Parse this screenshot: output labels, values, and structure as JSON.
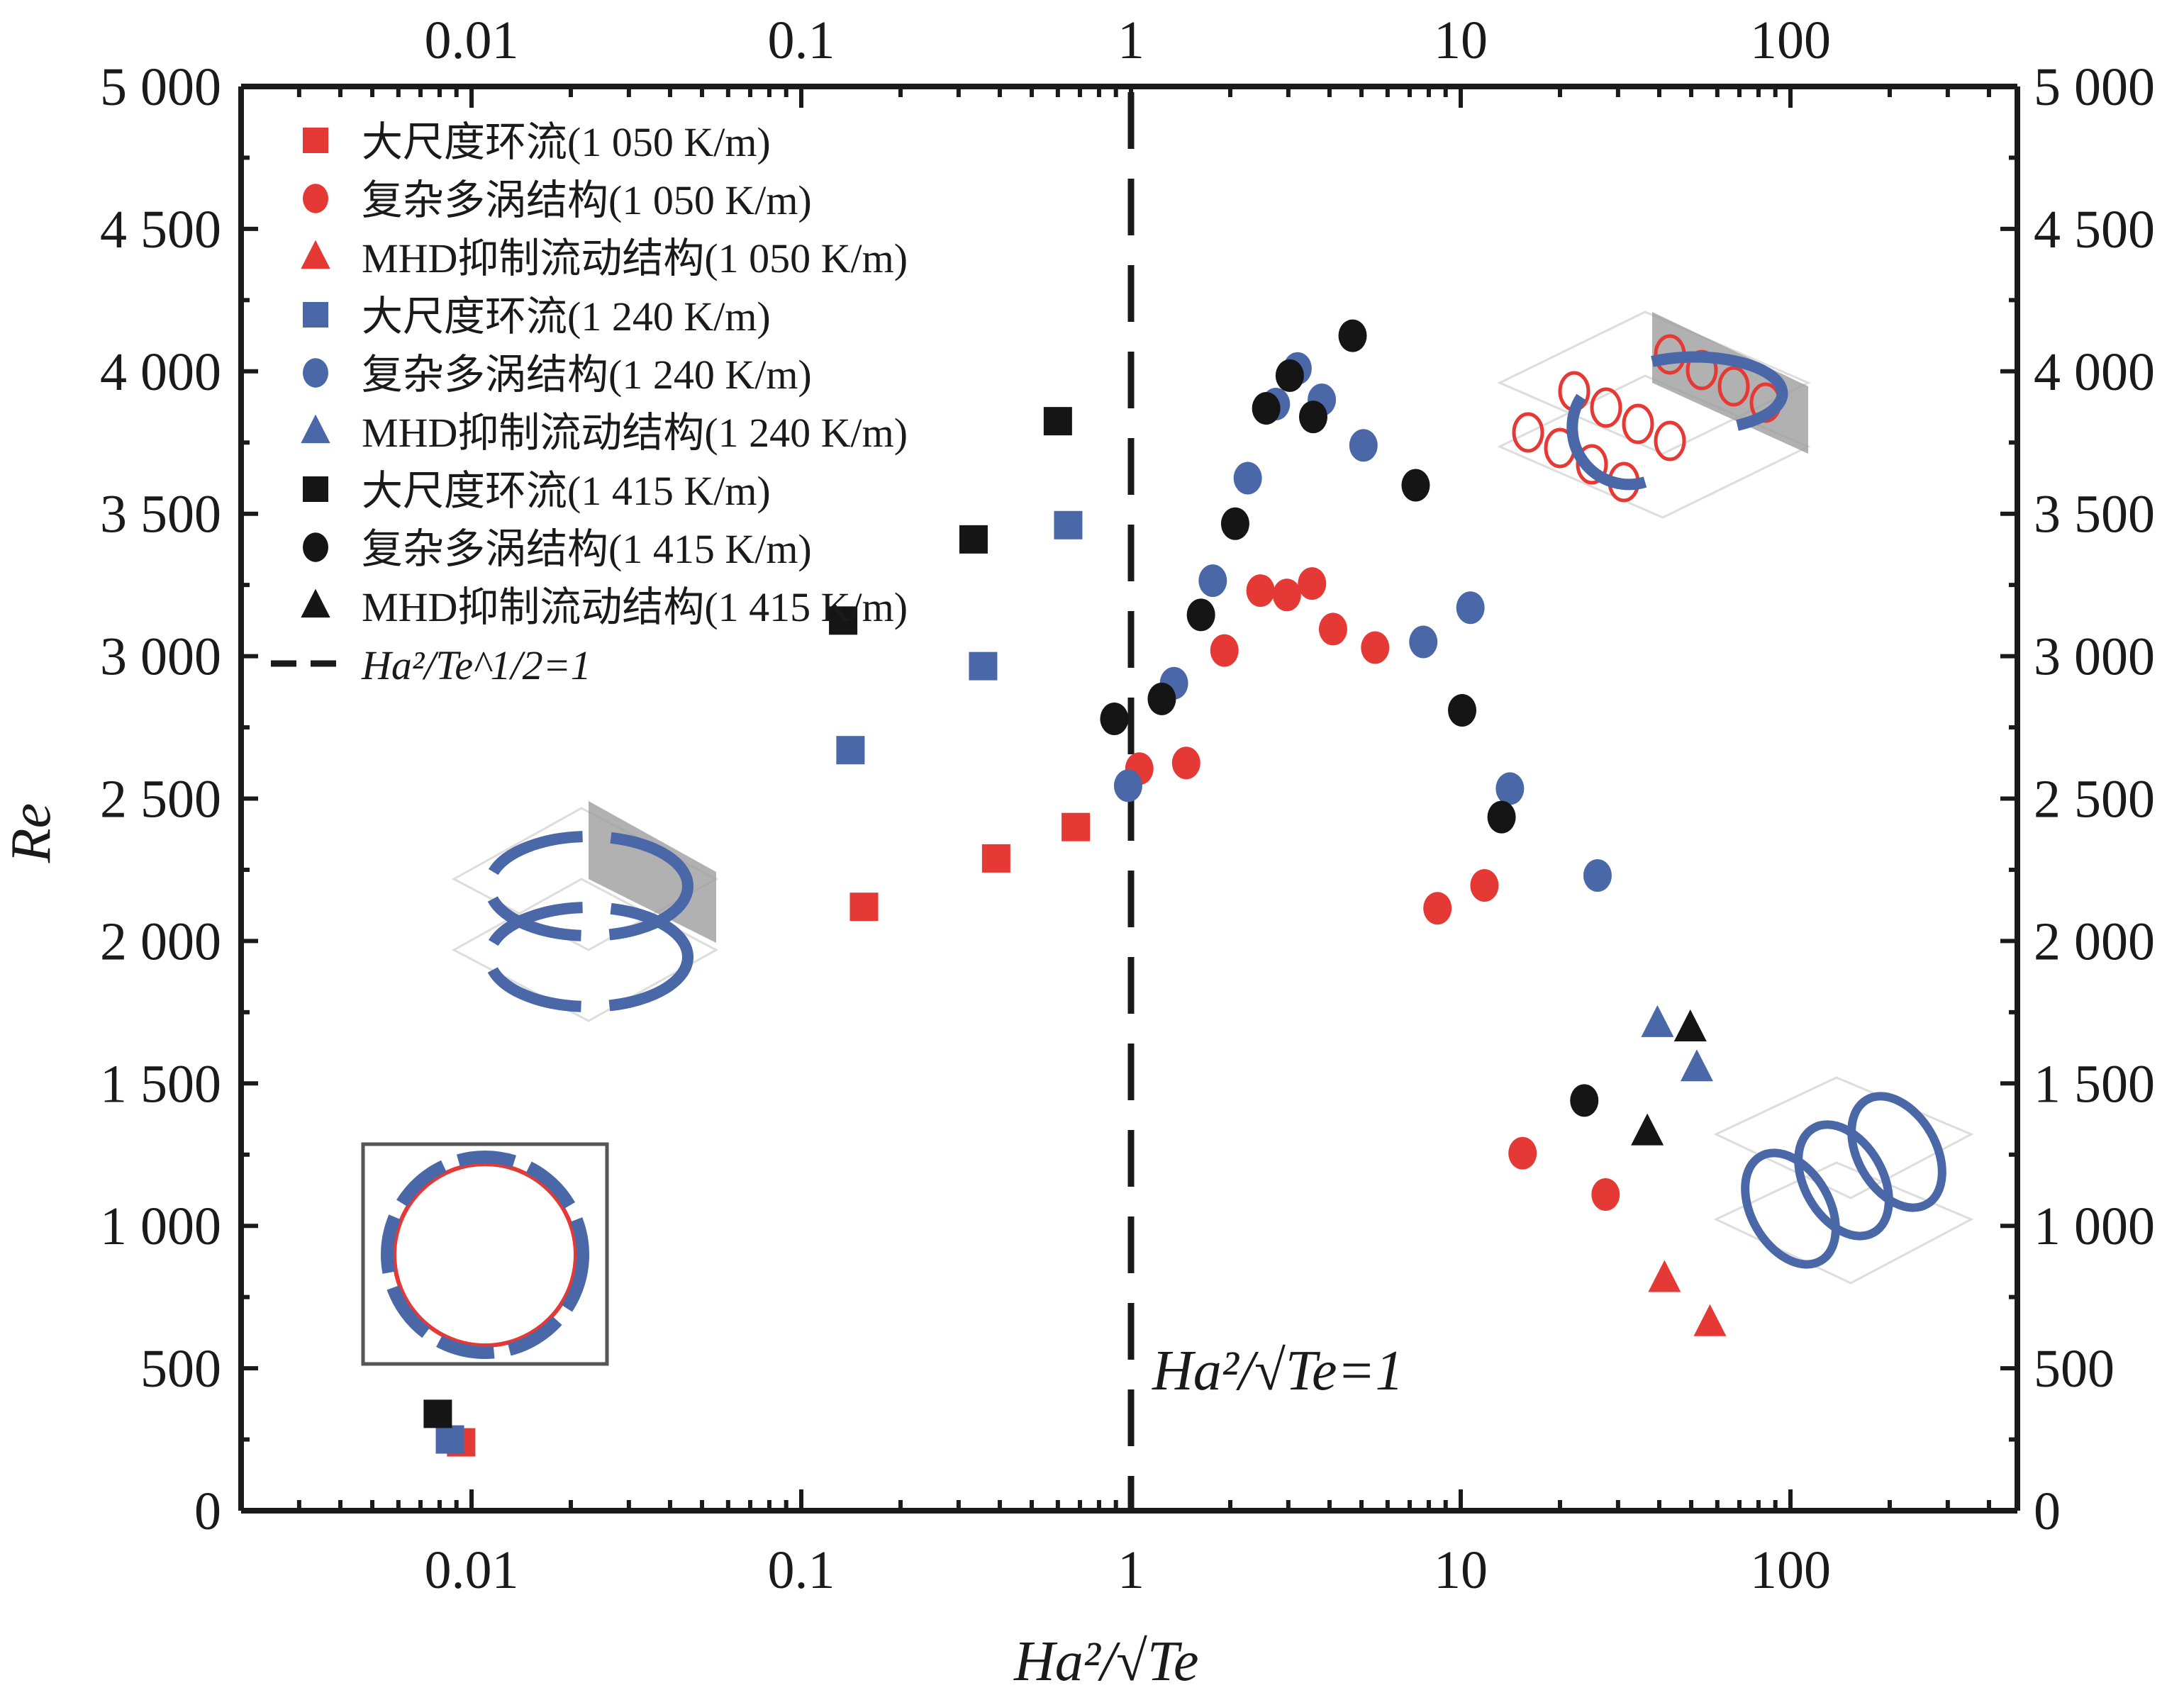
{
  "chart_data": {
    "type": "scatter",
    "title": "",
    "xlabel": "Ha²/√Te",
    "ylabel": "Re",
    "xscale": "log",
    "xlim": [
      0.0023,
      450
    ],
    "ylim": [
      0,
      5000
    ],
    "grid": false,
    "legend_position": "top-left",
    "x_ticks": [
      0.01,
      0.1,
      1,
      10,
      100
    ],
    "x_tick_labels": [
      "0.01",
      "0.1",
      "1",
      "10",
      "100"
    ],
    "y_ticks": [
      0,
      500,
      1000,
      1500,
      2000,
      2500,
      3000,
      3500,
      4000,
      4500,
      5000
    ],
    "y_tick_labels": [
      "0",
      "500",
      "1 000",
      "1 500",
      "2 000",
      "2 500",
      "3 000",
      "3 500",
      "4 000",
      "4 500",
      "5 000"
    ],
    "reference_line": {
      "x": 1,
      "style": "dashed",
      "legend_label": "Ha²/Te^1/2=1",
      "annotation": "Ha²/√Te=1"
    },
    "colors": {
      "red": "#e53935",
      "blue": "#4a67a8",
      "black": "#151515"
    },
    "series": [
      {
        "name": "大尺度环流(1 050 K/m)",
        "color": "red",
        "marker": "square",
        "points": [
          [
            0.0093,
            240
          ],
          [
            0.155,
            2120
          ],
          [
            0.39,
            2290
          ],
          [
            0.68,
            2400
          ]
        ]
      },
      {
        "name": "复杂多涡结构(1 050 K/m)",
        "color": "red",
        "marker": "circle",
        "points": [
          [
            1.06,
            2605
          ],
          [
            1.47,
            2625
          ],
          [
            1.92,
            3020
          ],
          [
            2.47,
            3230
          ],
          [
            2.97,
            3215
          ],
          [
            3.54,
            3255
          ],
          [
            4.1,
            3095
          ],
          [
            5.5,
            3030
          ],
          [
            8.5,
            2115
          ],
          [
            11.8,
            2195
          ],
          [
            15.4,
            1255
          ],
          [
            27.5,
            1110
          ]
        ]
      },
      {
        "name": "MHD抑制流动结构(1 050 K/m)",
        "color": "red",
        "marker": "triangle",
        "points": [
          [
            41.5,
            815
          ],
          [
            57,
            660
          ]
        ]
      },
      {
        "name": "大尺度环流(1 240 K/m)",
        "color": "blue",
        "marker": "square",
        "points": [
          [
            0.0086,
            250
          ],
          [
            0.141,
            2670
          ],
          [
            0.356,
            2965
          ],
          [
            0.645,
            3460
          ]
        ]
      },
      {
        "name": "复杂多涡结构(1 240 K/m)",
        "color": "blue",
        "marker": "circle",
        "points": [
          [
            0.98,
            2545
          ],
          [
            1.35,
            2905
          ],
          [
            1.77,
            3265
          ],
          [
            2.26,
            3625
          ],
          [
            2.75,
            3885
          ],
          [
            3.2,
            4010
          ],
          [
            3.79,
            3900
          ],
          [
            5.07,
            3740
          ],
          [
            7.7,
            3050
          ],
          [
            10.7,
            3170
          ],
          [
            14.1,
            2535
          ],
          [
            26,
            2230
          ]
        ]
      },
      {
        "name": "MHD抑制流动结构(1 240 K/m)",
        "color": "blue",
        "marker": "triangle",
        "points": [
          [
            39.5,
            1710
          ],
          [
            52,
            1555
          ]
        ]
      },
      {
        "name": "大尺度环流(1 415 K/m)",
        "color": "black",
        "marker": "square",
        "points": [
          [
            0.0079,
            340
          ],
          [
            0.134,
            3125
          ],
          [
            0.333,
            3410
          ],
          [
            0.6,
            3825
          ]
        ]
      },
      {
        "name": "复杂多涡结构(1 415 K/m)",
        "color": "black",
        "marker": "circle",
        "points": [
          [
            0.89,
            2780
          ],
          [
            1.24,
            2850
          ],
          [
            1.63,
            3145
          ],
          [
            2.07,
            3465
          ],
          [
            2.57,
            3870
          ],
          [
            3.03,
            3985
          ],
          [
            3.57,
            3840
          ],
          [
            4.7,
            4125
          ],
          [
            7.3,
            3600
          ],
          [
            10.1,
            2810
          ],
          [
            13.3,
            2435
          ],
          [
            23.7,
            1440
          ]
        ]
      },
      {
        "name": "MHD抑制流动结构(1 415 K/m)",
        "color": "black",
        "marker": "triangle",
        "points": [
          [
            36.8,
            1330
          ],
          [
            49.7,
            1695
          ]
        ]
      }
    ],
    "insets": [
      {
        "name": "single-roll-circulation-diagram",
        "description": "circular loop of blue arrows around red ring",
        "near": [
          0.012,
          950
        ]
      },
      {
        "name": "two-roll-circulation-diagram",
        "description": "3D box with two large blue circulating arrows",
        "near": [
          0.03,
          2100
        ]
      },
      {
        "name": "multi-vortex-diagram",
        "description": "3D box with many small red/blue vortex rings",
        "near": [
          30,
          3750
        ]
      },
      {
        "name": "mhd-suppressed-rolls-diagram",
        "description": "3D box with three elongated blue rolls",
        "near": [
          100,
          1150
        ]
      }
    ]
  }
}
